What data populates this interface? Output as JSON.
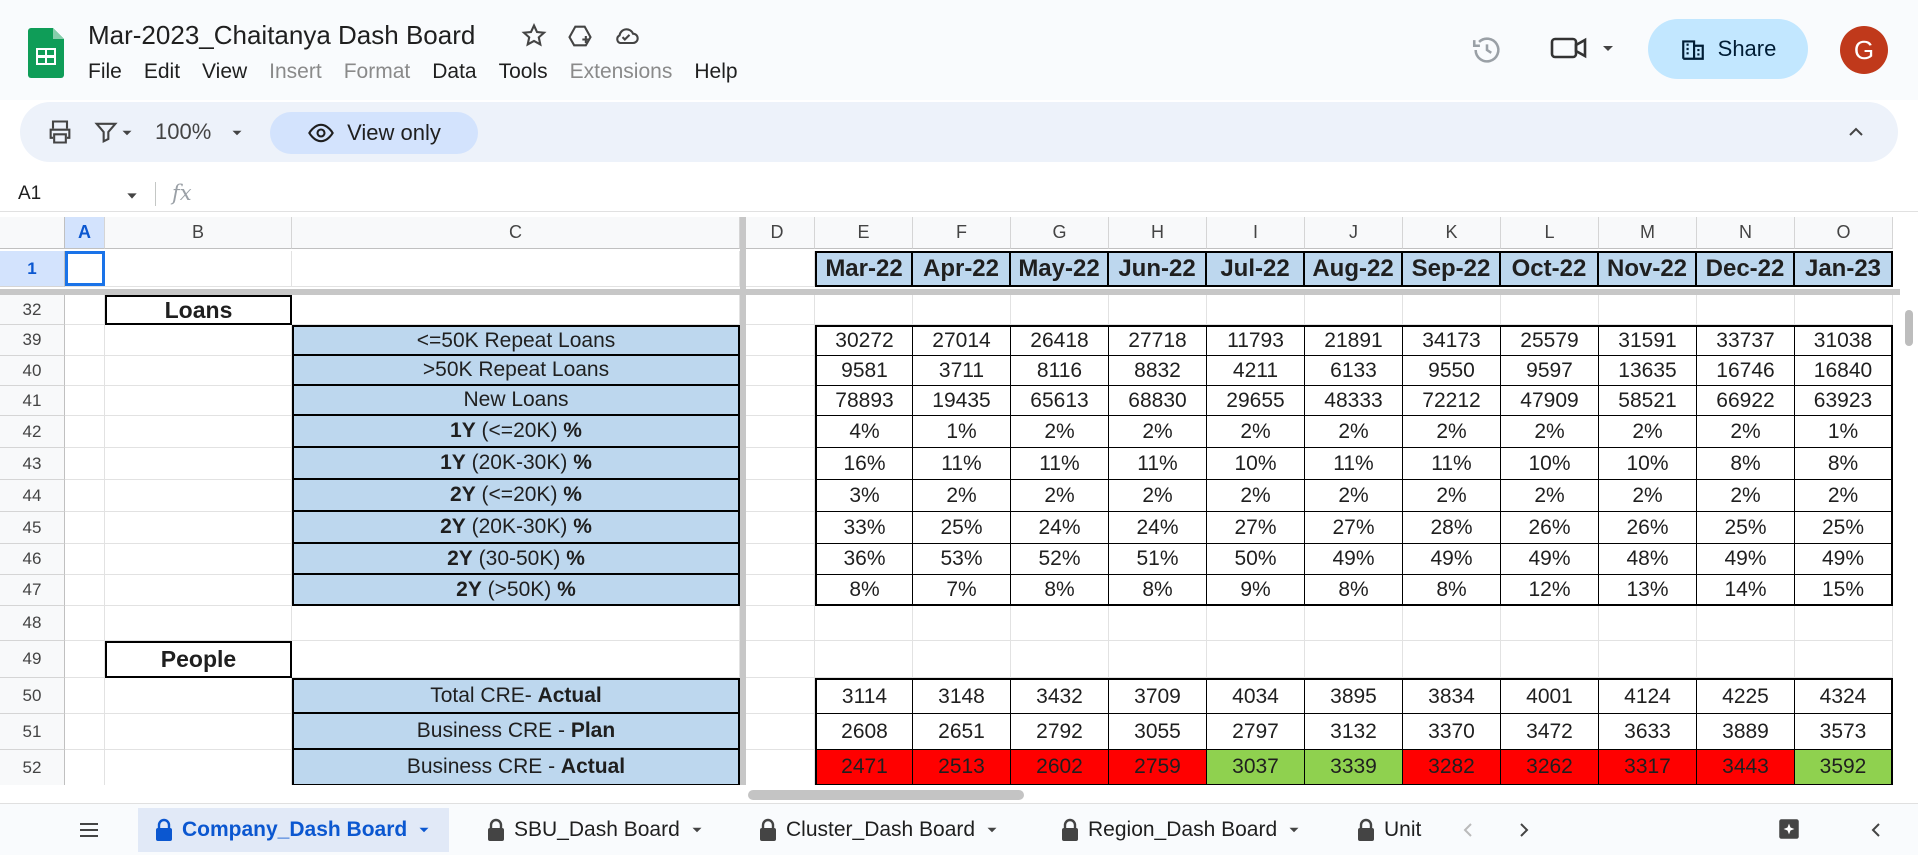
{
  "app": {
    "doc_title": "Mar-2023_Chaitanya Dash Board",
    "menu": [
      {
        "label": "File",
        "disabled": false
      },
      {
        "label": "Edit",
        "disabled": false
      },
      {
        "label": "View",
        "disabled": false
      },
      {
        "label": "Insert",
        "disabled": true
      },
      {
        "label": "Format",
        "disabled": true
      },
      {
        "label": "Data",
        "disabled": false
      },
      {
        "label": "Tools",
        "disabled": false
      },
      {
        "label": "Extensions",
        "disabled": true
      },
      {
        "label": "Help",
        "disabled": false
      }
    ],
    "share_label": "Share",
    "avatar_letter": "G"
  },
  "toolbar": {
    "zoom": "100%",
    "view_only_label": "View only"
  },
  "formula_bar": {
    "cell_ref": "A1",
    "fx": "fx"
  },
  "grid": {
    "columns": [
      "A",
      "B",
      "C",
      "D",
      "E",
      "F",
      "G",
      "H",
      "I",
      "J",
      "K",
      "L",
      "M",
      "N",
      "O"
    ],
    "months": [
      "Mar-22",
      "Apr-22",
      "May-22",
      "Jun-22",
      "Jul-22",
      "Aug-22",
      "Sep-22",
      "Oct-22",
      "Nov-22",
      "Dec-22",
      "Jan-23"
    ],
    "sections": [
      {
        "row": "32",
        "label": "Loans"
      },
      {
        "row": "49",
        "label": "People"
      }
    ],
    "rows": [
      {
        "num": "39",
        "label": "<=50K Repeat Loans",
        "values": [
          "30272",
          "27014",
          "26418",
          "27718",
          "11793",
          "21891",
          "34173",
          "25579",
          "31591",
          "33737",
          "31038"
        ]
      },
      {
        "num": "40",
        "label": ">50K Repeat Loans",
        "values": [
          "9581",
          "3711",
          "8116",
          "8832",
          "4211",
          "6133",
          "9550",
          "9597",
          "13635",
          "16746",
          "16840"
        ]
      },
      {
        "num": "41",
        "label": "New Loans",
        "values": [
          "78893",
          "19435",
          "65613",
          "68830",
          "29655",
          "48333",
          "72212",
          "47909",
          "58521",
          "66922",
          "63923"
        ]
      },
      {
        "num": "42",
        "label_bold": "1Y",
        "label": " (<=20K) ",
        "label_suffix": "%",
        "values": [
          "4%",
          "1%",
          "2%",
          "2%",
          "2%",
          "2%",
          "2%",
          "2%",
          "2%",
          "2%",
          "1%"
        ]
      },
      {
        "num": "43",
        "label_bold": "1Y",
        "label": " (20K-30K) ",
        "label_suffix": "%",
        "values": [
          "16%",
          "11%",
          "11%",
          "11%",
          "10%",
          "11%",
          "11%",
          "10%",
          "10%",
          "8%",
          "8%"
        ]
      },
      {
        "num": "44",
        "label_bold": "2Y",
        "label": " (<=20K) ",
        "label_suffix": "%",
        "values": [
          "3%",
          "2%",
          "2%",
          "2%",
          "2%",
          "2%",
          "2%",
          "2%",
          "2%",
          "2%",
          "2%"
        ]
      },
      {
        "num": "45",
        "label_bold": "2Y",
        "label": " (20K-30K) ",
        "label_suffix": "%",
        "values": [
          "33%",
          "25%",
          "24%",
          "24%",
          "27%",
          "27%",
          "28%",
          "26%",
          "26%",
          "25%",
          "25%"
        ]
      },
      {
        "num": "46",
        "label_bold": "2Y",
        "label": " (30-50K) ",
        "label_suffix": "%",
        "values": [
          "36%",
          "53%",
          "52%",
          "51%",
          "50%",
          "49%",
          "49%",
          "49%",
          "48%",
          "49%",
          "49%"
        ]
      },
      {
        "num": "47",
        "label_bold": "2Y",
        "label": " (>50K) ",
        "label_suffix": "%",
        "values": [
          "8%",
          "7%",
          "8%",
          "8%",
          "9%",
          "8%",
          "8%",
          "12%",
          "13%",
          "14%",
          "15%"
        ]
      },
      {
        "num": "50",
        "label": "Total CRE- ",
        "label_suffix": "Actual",
        "values": [
          "3114",
          "3148",
          "3432",
          "3709",
          "4034",
          "3895",
          "3834",
          "4001",
          "4124",
          "4225",
          "4324"
        ]
      },
      {
        "num": "51",
        "label": "Business CRE - ",
        "label_suffix": "Plan",
        "values": [
          "2608",
          "2651",
          "2792",
          "3055",
          "2797",
          "3132",
          "3370",
          "3472",
          "3633",
          "3889",
          "3573"
        ]
      },
      {
        "num": "52",
        "label": "Business CRE - ",
        "label_suffix": "Actual",
        "values": [
          "2471",
          "2513",
          "2602",
          "2759",
          "3037",
          "3339",
          "3282",
          "3262",
          "3317",
          "3443",
          "3592"
        ],
        "status": [
          "red",
          "red",
          "red",
          "red",
          "green",
          "green",
          "red",
          "red",
          "red",
          "red",
          "green"
        ]
      }
    ],
    "empty_rows": [
      "48"
    ]
  },
  "tabs": [
    {
      "label": "Company_Dash Board",
      "active": true
    },
    {
      "label": "SBU_Dash Board",
      "active": false
    },
    {
      "label": "Cluster_Dash Board",
      "active": false
    },
    {
      "label": "Region_Dash Board",
      "active": false
    },
    {
      "label": "Unit",
      "active": false
    }
  ],
  "colors": {
    "label_fill": "#bdd7ee",
    "miss": "#ff0000",
    "hit": "#8fd14f",
    "accent": "#0b57d0"
  }
}
